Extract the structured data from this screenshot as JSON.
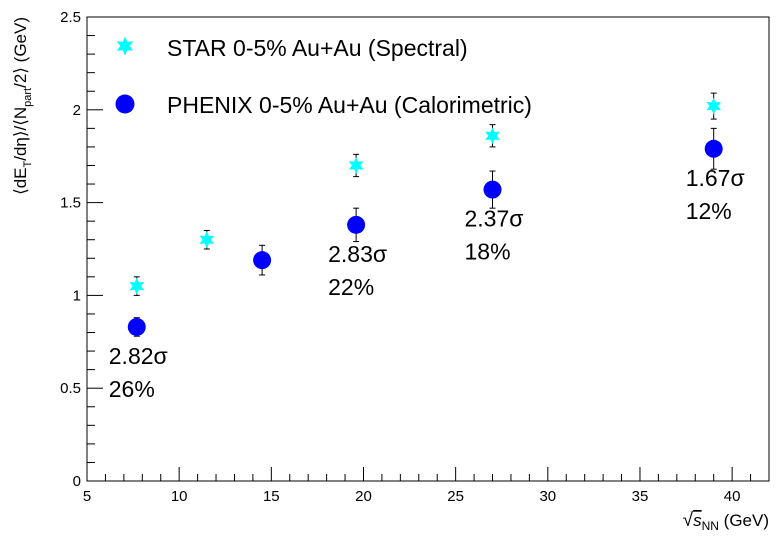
{
  "chart_data": {
    "type": "scatter",
    "xlim": [
      5,
      42
    ],
    "ylim": [
      0,
      2.5
    ],
    "x_ticks": [
      5,
      10,
      15,
      20,
      25,
      30,
      35,
      40
    ],
    "y_ticks": [
      0,
      0.5,
      1,
      1.5,
      2,
      2.5
    ],
    "x_tick_labels": [
      "5",
      "10",
      "15",
      "20",
      "25",
      "30",
      "35",
      "40"
    ],
    "y_tick_labels": [
      "0",
      "0.5",
      "1",
      "1.5",
      "2",
      "2.5"
    ],
    "xlabel": {
      "sqrt": "√",
      "var": "s",
      "sub": "NN",
      "unit": " (GeV)"
    },
    "ylabel": {
      "p1": "⟨dE",
      "s1": "T",
      "p2": "/dη⟩/⟨N",
      "s2": "part",
      "p3": "/2⟩ (GeV)"
    },
    "grid": false,
    "legend_position": "top-left",
    "series": [
      {
        "name": "STAR 0-5% Au+Au (Spectral)",
        "marker": "star",
        "color": "#00FFFF",
        "x": [
          7.7,
          11.5,
          19.6,
          27,
          39
        ],
        "y": [
          1.05,
          1.3,
          1.7,
          1.86,
          2.02
        ],
        "yerr": [
          0.05,
          0.05,
          0.06,
          0.06,
          0.07
        ]
      },
      {
        "name": "PHENIX 0-5% Au+Au (Calorimetric)",
        "marker": "circle",
        "color": "#0000FF",
        "x": [
          7.7,
          14.5,
          19.6,
          27,
          39
        ],
        "y": [
          0.83,
          1.19,
          1.38,
          1.57,
          1.79
        ],
        "yerr": [
          0.05,
          0.08,
          0.09,
          0.1,
          0.11
        ]
      }
    ],
    "annotations": [
      {
        "sigma": "2.82σ",
        "percent": "26%",
        "x": 7.7
      },
      {
        "sigma": "2.83σ",
        "percent": "22%",
        "x": 19.6
      },
      {
        "sigma": "2.37σ",
        "percent": "18%",
        "x": 27
      },
      {
        "sigma": "1.67σ",
        "percent": "12%",
        "x": 39
      }
    ]
  }
}
